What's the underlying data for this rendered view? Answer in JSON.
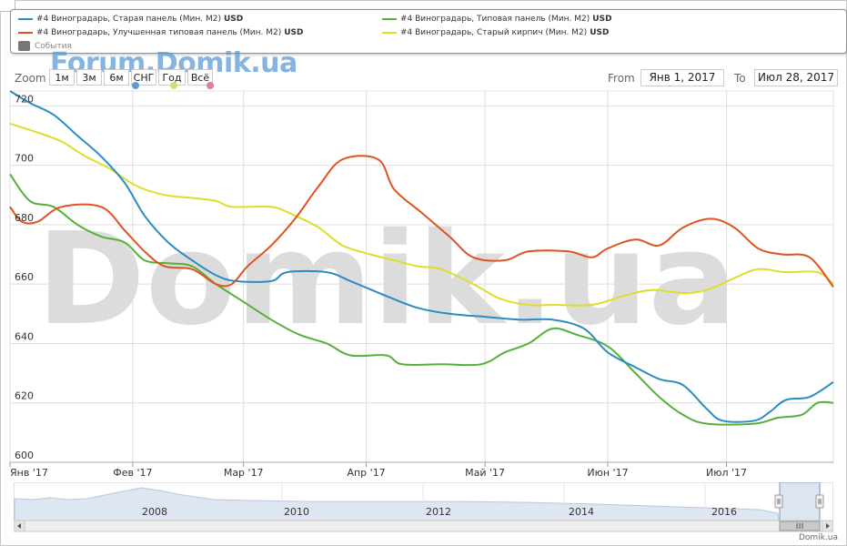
{
  "legend": {
    "series": [
      {
        "label": "#4 Виноградарь, Старая панель (Мин. М2)",
        "unit": "USD",
        "color": "#2b8cc4"
      },
      {
        "label": "#4 Виноградарь, Улучшенная типовая панель (Мин. М2)",
        "unit": "USD",
        "color": "#e0521f"
      },
      {
        "label": "#4 Виноградарь, Типовая панель (Мин. М2)",
        "unit": "USD",
        "color": "#55b03a"
      },
      {
        "label": "#4 Виноградарь, Старый кирпич (Мин. М2)",
        "unit": "USD",
        "color": "#dede2a"
      }
    ],
    "events_label": "События"
  },
  "watermark": {
    "small": "Forum.Domik.ua",
    "big": "Domik.ua"
  },
  "range_selector": {
    "zoom_label": "Zoom",
    "buttons": [
      "1м",
      "3м",
      "6м",
      "СНГ",
      "Год",
      "Всё"
    ],
    "from_label": "From",
    "from_value": "Янв 1, 2017",
    "to_label": "To",
    "to_value": "Июл 28, 2017"
  },
  "footer": {
    "brand": "Domik.ua"
  },
  "chart_data": {
    "type": "line",
    "ylim": [
      600,
      725
    ],
    "y_ticks": [
      600,
      620,
      640,
      660,
      680,
      700,
      720
    ],
    "x_range": [
      "2017-01-01",
      "2017-07-28"
    ],
    "x_ticks": [
      {
        "date": "2017-01-01",
        "label": "Янв '17"
      },
      {
        "date": "2017-02-01",
        "label": "Фев '17"
      },
      {
        "date": "2017-03-01",
        "label": "Мар '17"
      },
      {
        "date": "2017-04-01",
        "label": "Апр '17"
      },
      {
        "date": "2017-05-01",
        "label": "Май '17"
      },
      {
        "date": "2017-06-01",
        "label": "Июн '17"
      },
      {
        "date": "2017-07-01",
        "label": "Июл '17"
      }
    ],
    "grid": true,
    "series": [
      {
        "name": "#4 Виноградарь, Старая панель (Мин. М2)",
        "color": "#2b8cc4",
        "points": [
          [
            "2017-01-01",
            725
          ],
          [
            "2017-01-06",
            721
          ],
          [
            "2017-01-12",
            717
          ],
          [
            "2017-01-18",
            710
          ],
          [
            "2017-01-24",
            703
          ],
          [
            "2017-01-30",
            694
          ],
          [
            "2017-02-04",
            683
          ],
          [
            "2017-02-10",
            674
          ],
          [
            "2017-02-16",
            668
          ],
          [
            "2017-02-22",
            663
          ],
          [
            "2017-02-27",
            661
          ],
          [
            "2017-03-08",
            661
          ],
          [
            "2017-03-12",
            664
          ],
          [
            "2017-03-22",
            664
          ],
          [
            "2017-03-28",
            661
          ],
          [
            "2017-04-06",
            656
          ],
          [
            "2017-04-14",
            652
          ],
          [
            "2017-04-22",
            650
          ],
          [
            "2017-05-01",
            649
          ],
          [
            "2017-05-10",
            648
          ],
          [
            "2017-05-18",
            648
          ],
          [
            "2017-05-26",
            645
          ],
          [
            "2017-06-01",
            637
          ],
          [
            "2017-06-08",
            632
          ],
          [
            "2017-06-14",
            628
          ],
          [
            "2017-06-20",
            626
          ],
          [
            "2017-06-26",
            618
          ],
          [
            "2017-06-30",
            614
          ],
          [
            "2017-07-08",
            614
          ],
          [
            "2017-07-12",
            617
          ],
          [
            "2017-07-16",
            621
          ],
          [
            "2017-07-22",
            622
          ],
          [
            "2017-07-28",
            627
          ]
        ]
      },
      {
        "name": "#4 Виноградарь, Улучшенная типовая панель (Мин. М2)",
        "color": "#e0521f",
        "points": [
          [
            "2017-01-01",
            686
          ],
          [
            "2017-01-04",
            681
          ],
          [
            "2017-01-08",
            681
          ],
          [
            "2017-01-14",
            686
          ],
          [
            "2017-01-24",
            686
          ],
          [
            "2017-01-30",
            678
          ],
          [
            "2017-02-04",
            671
          ],
          [
            "2017-02-09",
            666
          ],
          [
            "2017-02-16",
            665
          ],
          [
            "2017-02-22",
            660
          ],
          [
            "2017-02-26",
            660
          ],
          [
            "2017-03-02",
            666
          ],
          [
            "2017-03-08",
            673
          ],
          [
            "2017-03-14",
            682
          ],
          [
            "2017-03-20",
            693
          ],
          [
            "2017-03-26",
            702
          ],
          [
            "2017-04-04",
            702
          ],
          [
            "2017-04-08",
            692
          ],
          [
            "2017-04-15",
            684
          ],
          [
            "2017-04-22",
            676
          ],
          [
            "2017-04-28",
            669
          ],
          [
            "2017-05-06",
            668
          ],
          [
            "2017-05-12",
            671
          ],
          [
            "2017-05-22",
            671
          ],
          [
            "2017-05-28",
            669
          ],
          [
            "2017-06-01",
            672
          ],
          [
            "2017-06-08",
            675
          ],
          [
            "2017-06-14",
            673
          ],
          [
            "2017-06-20",
            679
          ],
          [
            "2017-06-27",
            682
          ],
          [
            "2017-07-03",
            679
          ],
          [
            "2017-07-09",
            672
          ],
          [
            "2017-07-15",
            670
          ],
          [
            "2017-07-22",
            669
          ],
          [
            "2017-07-28",
            659
          ]
        ]
      },
      {
        "name": "#4 Виноградарь, Типовая панель (Мин. М2)",
        "color": "#55b03a",
        "points": [
          [
            "2017-01-01",
            697
          ],
          [
            "2017-01-06",
            688
          ],
          [
            "2017-01-12",
            686
          ],
          [
            "2017-01-18",
            680
          ],
          [
            "2017-01-24",
            676
          ],
          [
            "2017-01-30",
            674
          ],
          [
            "2017-02-04",
            668
          ],
          [
            "2017-02-10",
            667
          ],
          [
            "2017-02-16",
            666
          ],
          [
            "2017-02-22",
            660
          ],
          [
            "2017-03-01",
            654
          ],
          [
            "2017-03-08",
            648
          ],
          [
            "2017-03-15",
            643
          ],
          [
            "2017-03-22",
            640
          ],
          [
            "2017-03-28",
            636
          ],
          [
            "2017-04-06",
            636
          ],
          [
            "2017-04-10",
            633
          ],
          [
            "2017-04-20",
            633
          ],
          [
            "2017-04-30",
            633
          ],
          [
            "2017-05-06",
            637
          ],
          [
            "2017-05-12",
            640
          ],
          [
            "2017-05-18",
            645
          ],
          [
            "2017-05-24",
            643
          ],
          [
            "2017-06-01",
            639
          ],
          [
            "2017-06-08",
            630
          ],
          [
            "2017-06-14",
            622
          ],
          [
            "2017-06-20",
            616
          ],
          [
            "2017-06-26",
            613
          ],
          [
            "2017-07-08",
            613
          ],
          [
            "2017-07-14",
            615
          ],
          [
            "2017-07-20",
            616
          ],
          [
            "2017-07-24",
            620
          ],
          [
            "2017-07-28",
            620
          ]
        ]
      },
      {
        "name": "#4 Виноградарь, Старый кирпич (Мин. М2)",
        "color": "#dede2a",
        "points": [
          [
            "2017-01-01",
            714
          ],
          [
            "2017-01-08",
            711
          ],
          [
            "2017-01-14",
            708
          ],
          [
            "2017-01-20",
            703
          ],
          [
            "2017-01-26",
            699
          ],
          [
            "2017-02-02",
            693
          ],
          [
            "2017-02-09",
            690
          ],
          [
            "2017-02-16",
            689
          ],
          [
            "2017-02-22",
            688
          ],
          [
            "2017-02-26",
            686
          ],
          [
            "2017-03-08",
            686
          ],
          [
            "2017-03-14",
            683
          ],
          [
            "2017-03-20",
            679
          ],
          [
            "2017-03-26",
            673
          ],
          [
            "2017-04-02",
            670
          ],
          [
            "2017-04-08",
            668
          ],
          [
            "2017-04-14",
            666
          ],
          [
            "2017-04-20",
            665
          ],
          [
            "2017-04-28",
            660
          ],
          [
            "2017-05-05",
            655
          ],
          [
            "2017-05-12",
            653
          ],
          [
            "2017-05-19",
            653
          ],
          [
            "2017-05-28",
            653
          ],
          [
            "2017-06-05",
            656
          ],
          [
            "2017-06-12",
            658
          ],
          [
            "2017-06-20",
            657
          ],
          [
            "2017-06-26",
            658
          ],
          [
            "2017-07-03",
            662
          ],
          [
            "2017-07-09",
            665
          ],
          [
            "2017-07-16",
            664
          ],
          [
            "2017-07-24",
            664
          ],
          [
            "2017-07-28",
            660
          ]
        ]
      }
    ]
  },
  "navigator": {
    "year_labels": [
      "2008",
      "2010",
      "2012",
      "2014",
      "2016"
    ]
  }
}
